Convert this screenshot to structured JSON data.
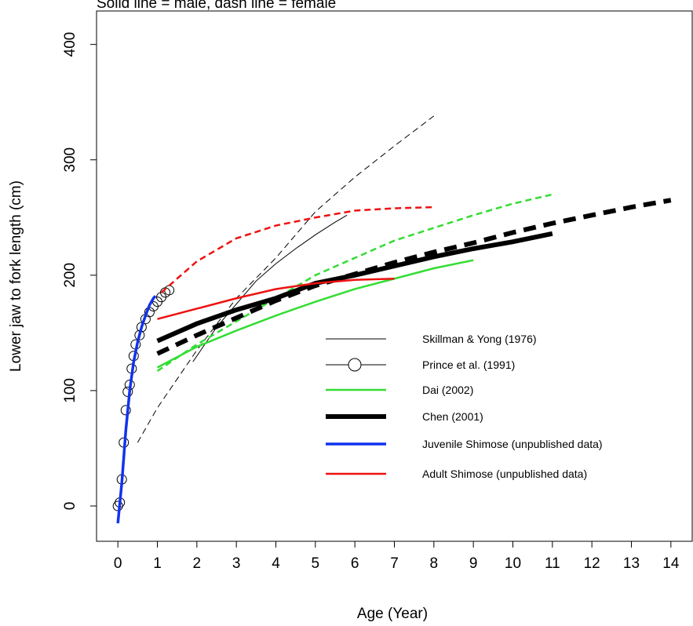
{
  "chart_data": {
    "type": "line",
    "title": "Solid line = male, dash line = female",
    "x_label": "Age (Year)",
    "y_label": "Lower jaw to fork length (cm)",
    "xlim": [
      -0.54,
      14.54
    ],
    "ylim": [
      -30.6,
      429
    ],
    "xticks": [
      0,
      1,
      2,
      3,
      4,
      5,
      6,
      7,
      8,
      9,
      10,
      11,
      12,
      13,
      14
    ],
    "yticks": [
      0,
      100,
      200,
      300,
      400
    ],
    "series": [
      {
        "name": "Skillman & Yong (1976)",
        "color": "#000000",
        "width": 1,
        "marker": "none",
        "male": {
          "x": [
            1.9,
            2.5,
            3,
            3.5,
            4,
            4.5,
            5,
            5.5,
            5.8
          ],
          "values": [
            125,
            155,
            175,
            195,
            210,
            223,
            235,
            246,
            252
          ]
        },
        "female": {
          "x": [
            0.5,
            1,
            2,
            3,
            4,
            5,
            6,
            7,
            8
          ],
          "values": [
            55,
            85,
            135,
            180,
            215,
            255,
            285,
            312,
            338
          ]
        }
      },
      {
        "name": "Prince et al. (1991)",
        "color": "#000000",
        "width": 1,
        "marker": "circle",
        "male": {
          "x": [
            0,
            0.05,
            0.1,
            0.15,
            0.2,
            0.25,
            0.3,
            0.35,
            0.4,
            0.45,
            0.55,
            0.6,
            0.7,
            0.8,
            0.9,
            1,
            1.1,
            1.2,
            1.3
          ],
          "values": [
            0,
            3,
            23,
            55,
            83,
            99,
            105,
            119,
            130,
            140,
            148,
            155,
            162,
            168,
            173,
            177,
            181,
            185,
            187
          ]
        }
      },
      {
        "name": "Dai (2002)",
        "color": "#33dd33",
        "width": 2.5,
        "marker": "none",
        "male": {
          "x": [
            1,
            2,
            3,
            4,
            5,
            6,
            7,
            8,
            9
          ],
          "values": [
            120,
            138,
            152,
            165,
            177,
            188,
            197,
            206,
            213
          ]
        },
        "female": {
          "x": [
            1,
            2,
            3,
            4,
            5,
            6,
            7,
            8,
            9,
            10,
            11
          ],
          "values": [
            117,
            140,
            160,
            180,
            200,
            215,
            230,
            241,
            252,
            262,
            270
          ]
        }
      },
      {
        "name": "Chen (2001)",
        "color": "#000000",
        "width": 6,
        "marker": "none",
        "male": {
          "x": [
            1,
            2,
            3,
            4,
            5,
            6,
            7,
            8,
            9,
            10,
            11
          ],
          "values": [
            143,
            158,
            170,
            180,
            193,
            200,
            208,
            216,
            223,
            229,
            236
          ]
        },
        "female": {
          "x": [
            1,
            2,
            3,
            4,
            5,
            6,
            7,
            8,
            9,
            10,
            11,
            12,
            13,
            14
          ],
          "values": [
            132,
            148,
            163,
            178,
            191,
            201,
            211,
            220,
            228,
            237,
            245,
            252,
            259,
            265
          ]
        }
      },
      {
        "name": "Juvenile Shimose (unpublished data)",
        "color": "#1133ee",
        "width": 3.5,
        "marker": "none",
        "male": {
          "x": [
            0,
            0.1,
            0.2,
            0.3,
            0.4,
            0.5,
            0.6,
            0.7,
            0.8,
            0.9,
            0.95
          ],
          "values": [
            -15,
            20,
            65,
            100,
            125,
            142,
            155,
            165,
            174,
            180,
            182
          ]
        }
      },
      {
        "name": "Adult Shimose (unpublished data)",
        "color": "#ee1111",
        "width": 2.5,
        "marker": "none",
        "male": {
          "x": [
            1,
            2,
            3,
            4,
            5,
            6,
            7
          ],
          "values": [
            162,
            171,
            180,
            188,
            193,
            196,
            197
          ]
        },
        "female": {
          "x": [
            1.1,
            2,
            3,
            4,
            5,
            6,
            7,
            8
          ],
          "values": [
            185,
            212,
            232,
            243,
            250,
            256,
            258,
            259
          ]
        }
      }
    ]
  }
}
